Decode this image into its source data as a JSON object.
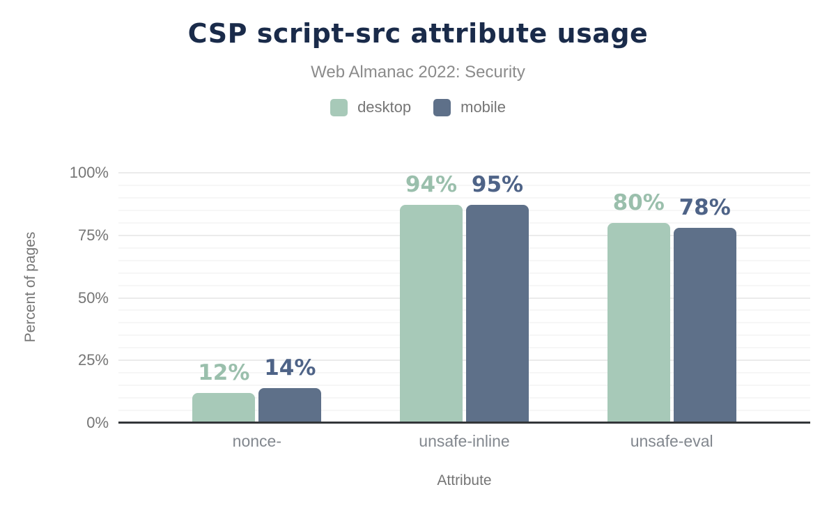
{
  "chart_data": {
    "type": "bar",
    "title": "CSP script-src attribute usage",
    "subtitle": "Web Almanac 2022: Security",
    "categories": [
      "nonce-",
      "unsafe-inline",
      "unsafe-eval"
    ],
    "series": [
      {
        "name": "desktop",
        "color": "#a7c9b8",
        "label_color": "#9abfac",
        "values": [
          12,
          94,
          80
        ],
        "value_labels": [
          "12%",
          "94%",
          "80%"
        ]
      },
      {
        "name": "mobile",
        "color": "#5e7089",
        "label_color": "#4e6387",
        "values": [
          14,
          95,
          78
        ],
        "value_labels": [
          "14%",
          "95%",
          "78%"
        ]
      }
    ],
    "xlabel": "Attribute",
    "ylabel": "Percent of pages",
    "ylim": [
      0,
      100
    ],
    "yticks": [
      0,
      25,
      50,
      75,
      100
    ],
    "ytick_labels": [
      "0%",
      "25%",
      "50%",
      "75%",
      "100%"
    ],
    "grid": {
      "show": true,
      "minor_step": 5,
      "major_step": 25
    },
    "legend_position": "top",
    "background_color": "#ffffff",
    "title_color": "#1a2b4a",
    "axis_line_color": "#333639"
  }
}
